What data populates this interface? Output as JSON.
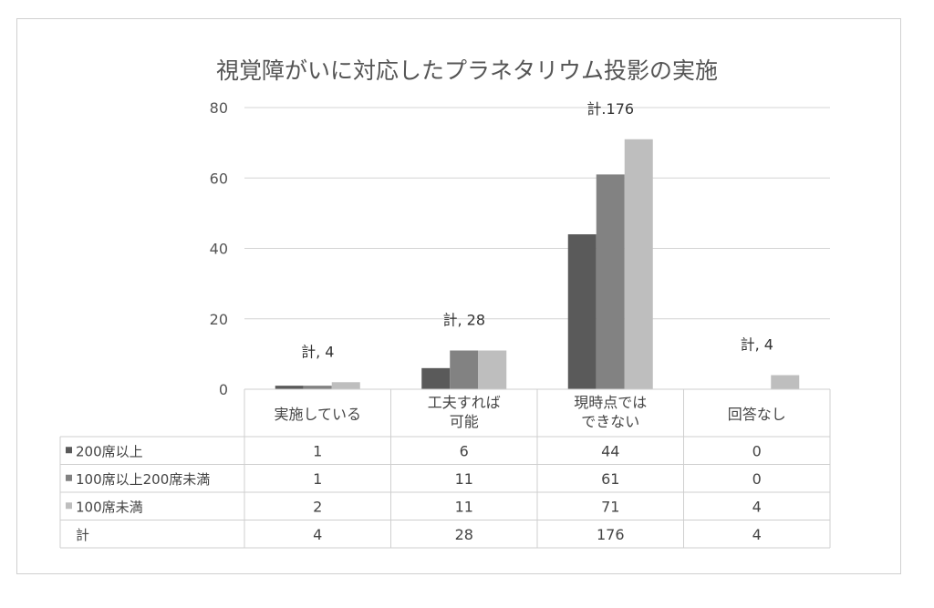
{
  "title": "視覚障がいに対応したプラネタリウム投影の実施",
  "colors": {
    "s1": "#5a5a5a",
    "s2": "#828282",
    "s3": "#bebebe",
    "grid": "#d4d4d4"
  },
  "chart_data": {
    "type": "bar",
    "title": "視覚障がいに対応したプラネタリウム投影の実施",
    "categories": [
      [
        "実施している"
      ],
      [
        "工夫すれば",
        "可能"
      ],
      [
        "現時点では",
        "できない"
      ],
      [
        "回答なし"
      ]
    ],
    "series": [
      {
        "name": "200席以上",
        "values": [
          1,
          6,
          44,
          0
        ]
      },
      {
        "name": "100席以上200席未満",
        "values": [
          1,
          11,
          61,
          0
        ]
      },
      {
        "name": "100席未満",
        "values": [
          2,
          11,
          71,
          4
        ]
      }
    ],
    "ylim": [
      0,
      80
    ],
    "yticks": [
      0,
      20,
      40,
      60,
      80
    ],
    "totals_row_label": "計",
    "totals": [
      4,
      28,
      176,
      4
    ],
    "total_labels": [
      "計, 4",
      "計, 28",
      "計.176",
      "計, 4"
    ],
    "grid": true,
    "data_table": true
  }
}
